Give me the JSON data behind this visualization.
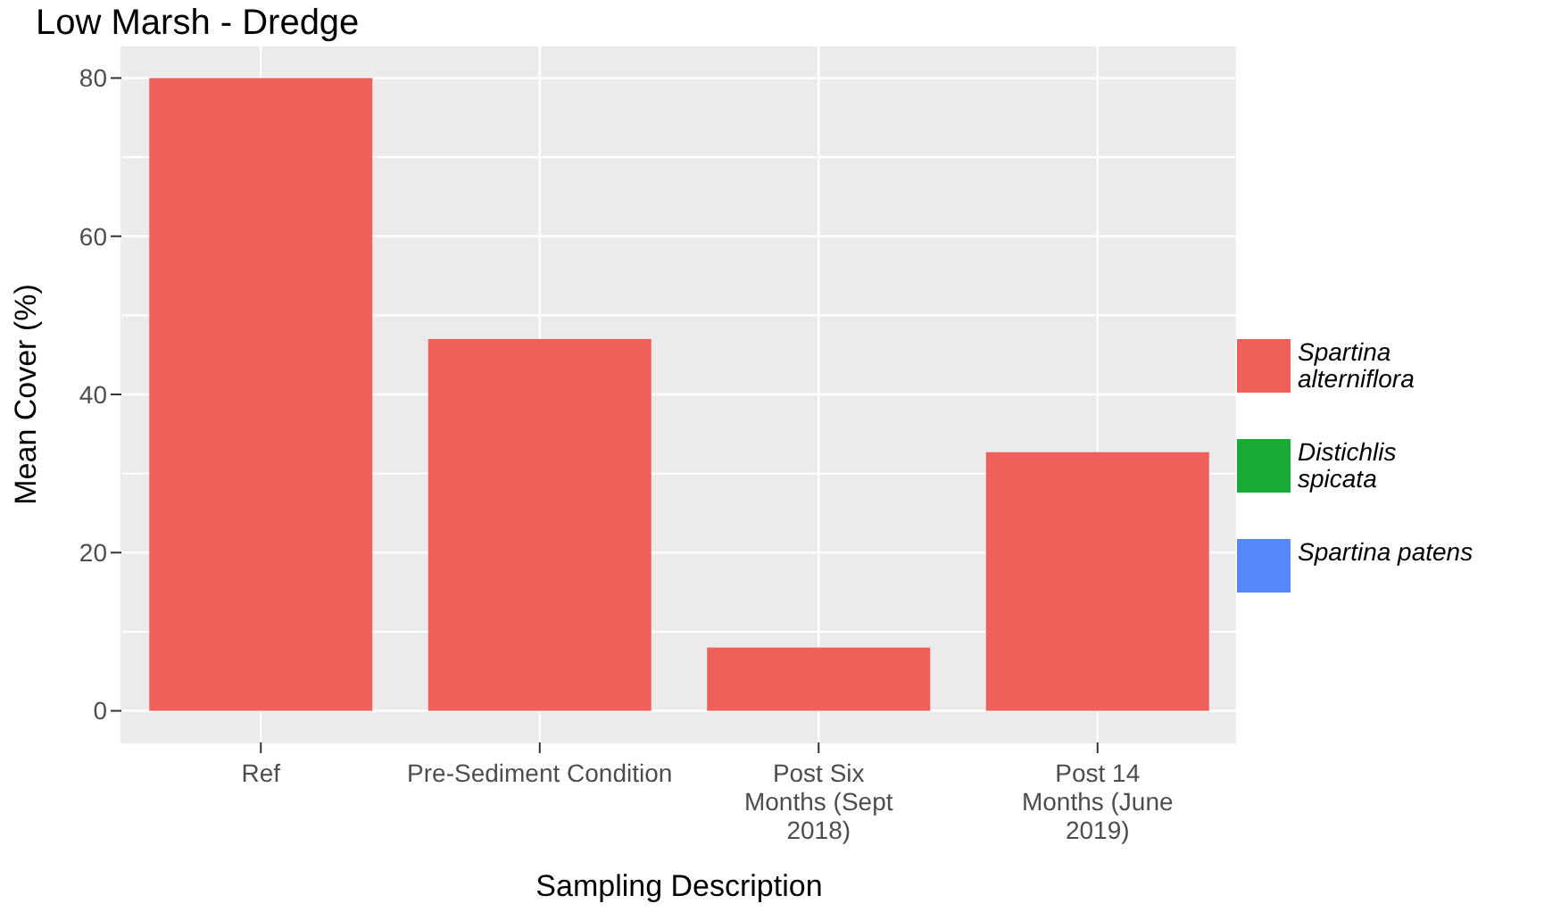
{
  "chart_data": {
    "type": "bar",
    "title": "Low Marsh - Dredge",
    "xlabel": "Sampling Description",
    "ylabel": "Mean Cover (%)",
    "categories": [
      "Ref",
      "Pre-Sediment Condition",
      "Post Six Months (Sept 2018)",
      "Post 14 Months (June 2019)"
    ],
    "stacked": true,
    "series": [
      {
        "name": "Spartina alterniflora",
        "color": "#f0605b",
        "values": [
          80,
          47,
          8,
          32.7
        ]
      },
      {
        "name": "Distichlis spicata",
        "color": "#1aab35",
        "values": [
          0,
          0,
          0,
          0
        ]
      },
      {
        "name": "Spartina patens",
        "color": "#5588fb",
        "values": [
          0,
          0,
          0,
          0
        ]
      }
    ],
    "ylim": [
      -4,
      84
    ],
    "yticks": [
      0,
      20,
      40,
      60,
      80
    ],
    "grid": true,
    "legend": "right"
  }
}
